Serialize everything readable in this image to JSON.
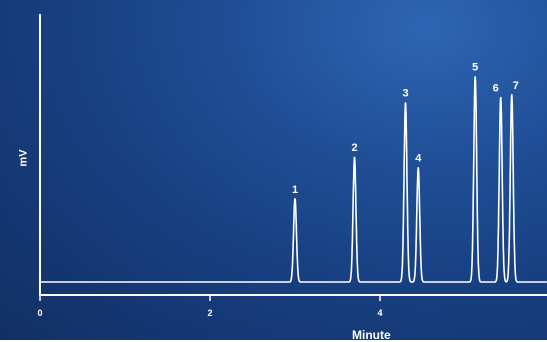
{
  "chart_data": {
    "type": "line",
    "title": "",
    "xlabel": "Minute",
    "ylabel": "mV",
    "xlim": [
      0,
      6
    ],
    "x_ticks": [
      "0",
      "2",
      "4"
    ],
    "ylim": [
      0,
      100
    ],
    "grid": false,
    "baseline": 3,
    "peaks": [
      {
        "label": "1",
        "x": 3.0,
        "height": 35
      },
      {
        "label": "2",
        "x": 3.7,
        "height": 51
      },
      {
        "label": "3",
        "x": 4.3,
        "height": 72
      },
      {
        "label": "4",
        "x": 4.45,
        "height": 47
      },
      {
        "label": "5",
        "x": 5.12,
        "height": 82
      },
      {
        "label": "6",
        "x": 5.42,
        "height": 74
      },
      {
        "label": "7",
        "x": 5.55,
        "height": 75
      }
    ]
  },
  "colors": {
    "trace": "#ffffff",
    "axis": "#ffffff"
  }
}
